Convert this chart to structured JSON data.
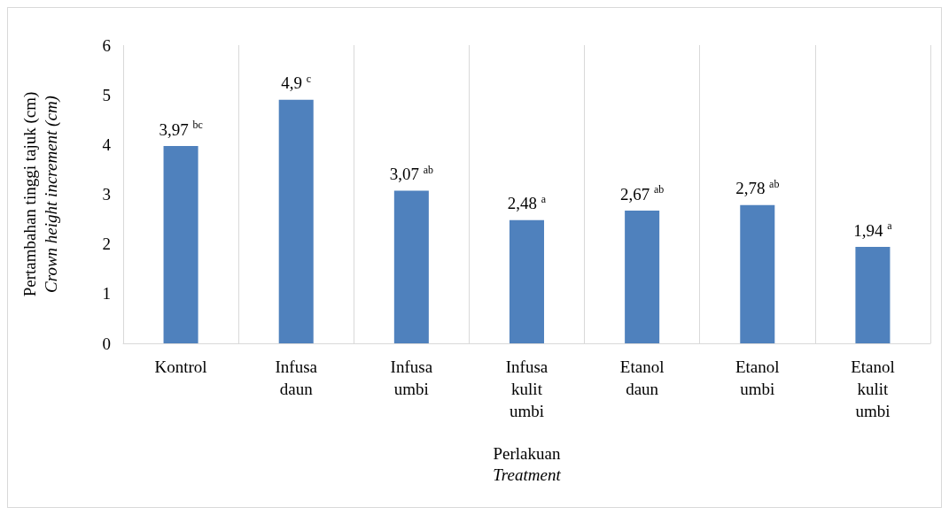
{
  "chart_data": {
    "type": "bar",
    "categories": [
      "Kontrol",
      "Infusa\ndaun",
      "Infusa\numbi",
      "Infusa\nkulit\numbi",
      "Etanol\ndaun",
      "Etanol\numbi",
      "Etanol\nkulit\numbi"
    ],
    "values": [
      3.97,
      4.9,
      3.07,
      2.48,
      2.67,
      2.78,
      1.94
    ],
    "value_labels": [
      "3,97 $^{bc}$",
      "4,9 $^{c}$",
      "3,07 $^{ab}$",
      "2,48 $^{a}$",
      "2,67 $^{ab}$",
      "2,78 $^{ab}$",
      "1,94 $^{a}$"
    ],
    "color": "#4f81bd",
    "xlabel": "Perlakuan\nTreatment",
    "ylabel": "Pertambahan tinggi tajuk (cm)\nCrown height increment (cm)",
    "ylim": [
      0,
      6
    ],
    "yticks": [
      0,
      1,
      2,
      3,
      4,
      5,
      6
    ],
    "grid": "x"
  }
}
